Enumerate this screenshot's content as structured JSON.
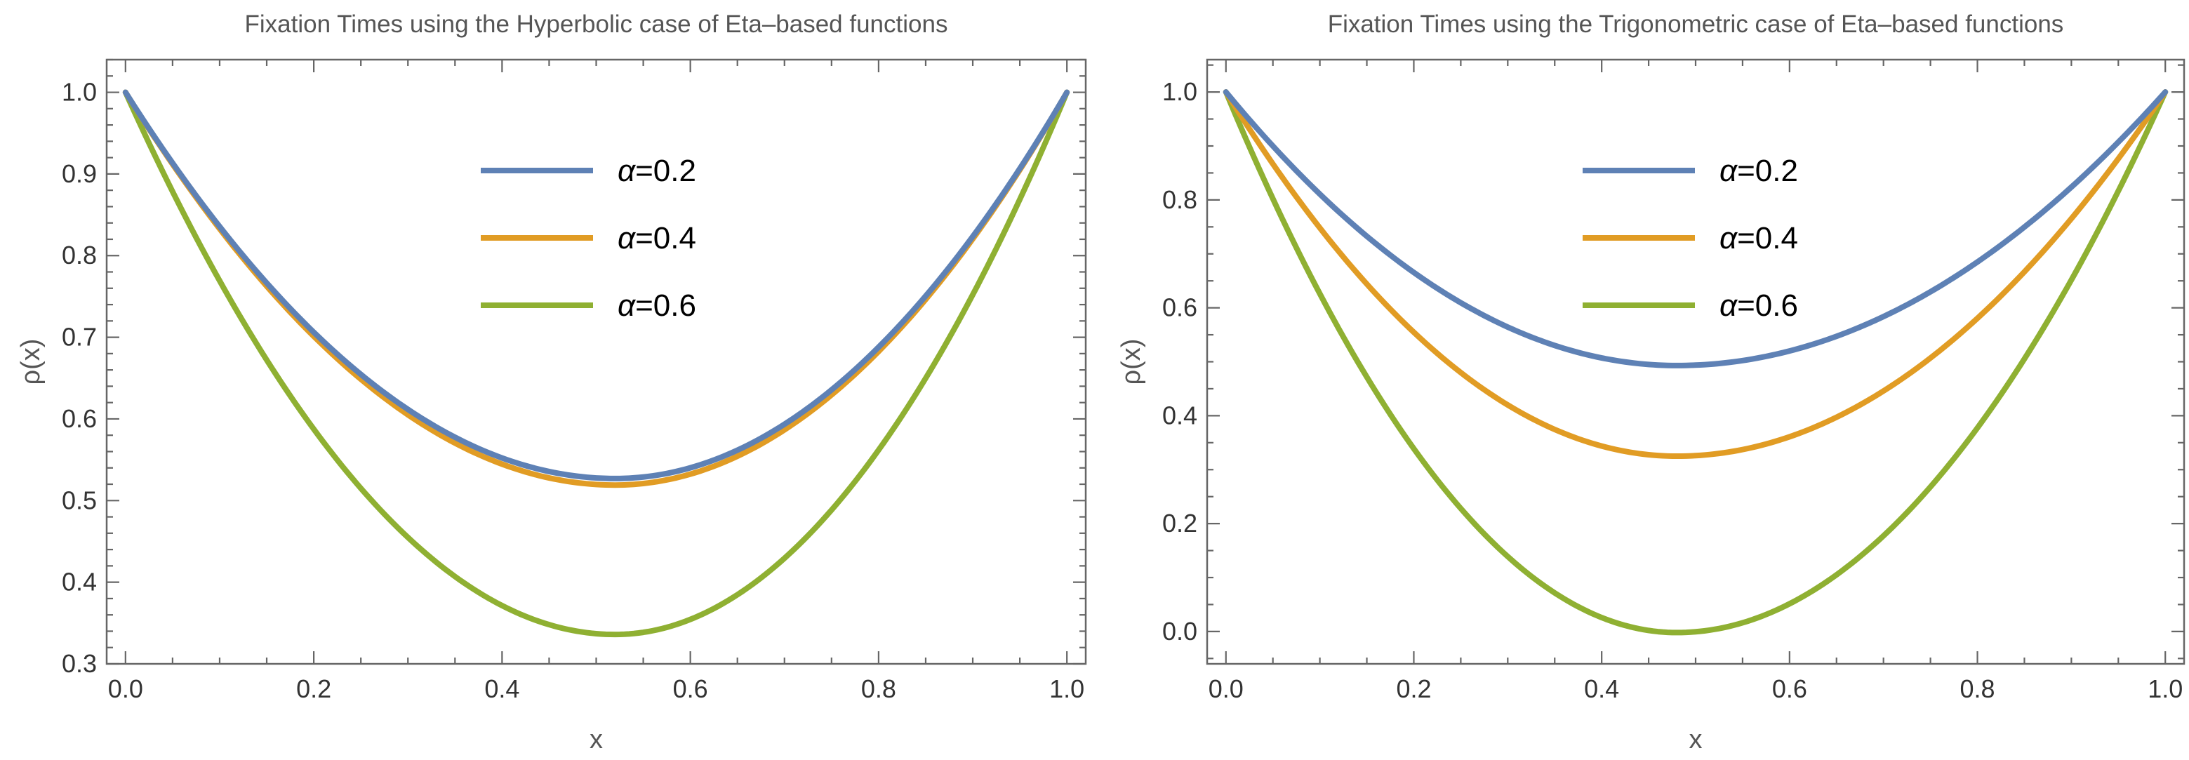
{
  "chart_data": [
    {
      "type": "line",
      "title": "Fixation Times using the Hyperbolic case of Eta–based functions",
      "xlabel": "x",
      "ylabel": "ρ(x)",
      "xlim": [
        -0.02,
        1.02
      ],
      "ylim": [
        0.3,
        1.04
      ],
      "xticks": [
        0.0,
        0.2,
        0.4,
        0.6,
        0.8,
        1.0
      ],
      "xtick_labels": [
        "0.0",
        "0.2",
        "0.4",
        "0.6",
        "0.8",
        "1.0"
      ],
      "yticks": [
        0.3,
        0.4,
        0.5,
        0.6,
        0.7,
        0.8,
        0.9,
        1.0
      ],
      "ytick_labels": [
        "0.3",
        "0.4",
        "0.5",
        "0.6",
        "0.7",
        "0.8",
        "0.9",
        "1.0"
      ],
      "y_minor_step": 0.02,
      "x_minor_step": 0.05,
      "legend_position": "top-center",
      "series": [
        {
          "name": "α=0.2",
          "legend_symbol": "α",
          "legend_value": "=0.2",
          "color": "#5e81b5",
          "min_x": 0.52,
          "min_y": 0.527
        },
        {
          "name": "α=0.4",
          "legend_symbol": "α",
          "legend_value": "=0.4",
          "color": "#e19c24",
          "min_x": 0.52,
          "min_y": 0.519
        },
        {
          "name": "α=0.6",
          "legend_symbol": "α",
          "legend_value": "=0.6",
          "color": "#8fb032",
          "min_x": 0.52,
          "min_y": 0.336
        }
      ]
    },
    {
      "type": "line",
      "title": "Fixation Times using the Trigonometric case of Eta–based functions",
      "xlabel": "x",
      "ylabel": "ρ(x)",
      "xlim": [
        -0.02,
        1.02
      ],
      "ylim": [
        -0.06,
        1.06
      ],
      "xticks": [
        0.0,
        0.2,
        0.4,
        0.6,
        0.8,
        1.0
      ],
      "xtick_labels": [
        "0.0",
        "0.2",
        "0.4",
        "0.6",
        "0.8",
        "1.0"
      ],
      "yticks": [
        0.0,
        0.2,
        0.4,
        0.6,
        0.8,
        1.0
      ],
      "ytick_labels": [
        "0.0",
        "0.2",
        "0.4",
        "0.6",
        "0.8",
        "1.0"
      ],
      "y_minor_step": 0.05,
      "x_minor_step": 0.05,
      "legend_position": "top-center",
      "series": [
        {
          "name": "α=0.2",
          "legend_symbol": "α",
          "legend_value": "=0.2",
          "color": "#5e81b5",
          "min_x": 0.48,
          "min_y": 0.493
        },
        {
          "name": "α=0.4",
          "legend_symbol": "α",
          "legend_value": "=0.4",
          "color": "#e19c24",
          "min_x": 0.48,
          "min_y": 0.325
        },
        {
          "name": "α=0.6",
          "legend_symbol": "α",
          "legend_value": "=0.6",
          "color": "#8fb032",
          "min_x": 0.48,
          "min_y": -0.002
        }
      ]
    }
  ]
}
